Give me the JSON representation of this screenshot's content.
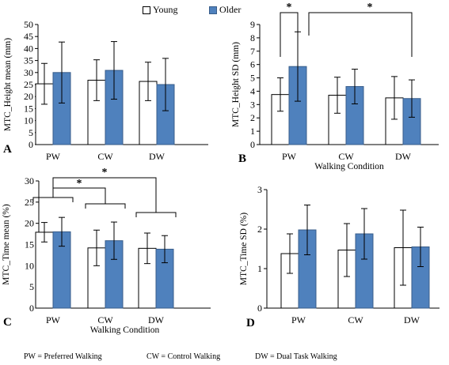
{
  "legend": {
    "young": "Young",
    "older": "Older"
  },
  "colors": {
    "young": "#ffffff",
    "older": "#4f81bd",
    "outline": "#385d8a"
  },
  "footer": {
    "pw": "PW = Preferred Walking",
    "cw": "CW = Control Walking",
    "dw": "DW = Dual Task Walking"
  },
  "chart_data": [
    {
      "type": "bar",
      "panel": "A",
      "categories": [
        "PW",
        "CW",
        "DW"
      ],
      "series": [
        {
          "name": "Young",
          "values": [
            25.3,
            26.8,
            26.3
          ],
          "error": [
            8.5,
            8.5,
            8.0
          ]
        },
        {
          "name": "Older",
          "values": [
            30.0,
            30.9,
            25.0
          ],
          "error": [
            12.7,
            12.0,
            10.9
          ]
        }
      ],
      "ylabel": "MTC_Height mean (mm)",
      "xlabel": "",
      "ylim": [
        0,
        50
      ],
      "yticks": [
        "0",
        "5",
        "10",
        "15",
        "20",
        "25",
        "30",
        "35",
        "40",
        "45",
        "50"
      ],
      "significance": []
    },
    {
      "type": "bar",
      "panel": "B",
      "categories": [
        "PW",
        "CW",
        "DW"
      ],
      "series": [
        {
          "name": "Young",
          "values": [
            3.75,
            3.7,
            3.5
          ],
          "error": [
            1.25,
            1.35,
            1.6
          ]
        },
        {
          "name": "Older",
          "values": [
            5.85,
            4.35,
            3.45
          ],
          "error": [
            2.6,
            1.3,
            1.4
          ]
        }
      ],
      "ylabel": "MTC_Height SD (mm)",
      "xlabel": "Walking Condition",
      "ylim": [
        0,
        9
      ],
      "yticks": [
        "0",
        "1",
        "2",
        "3",
        "4",
        "5",
        "6",
        "7",
        "8",
        "9"
      ],
      "significance": [
        "*",
        "*"
      ]
    },
    {
      "type": "bar",
      "panel": "C",
      "categories": [
        "PW",
        "CW",
        "DW"
      ],
      "series": [
        {
          "name": "Young",
          "values": [
            17.9,
            14.2,
            14.1
          ],
          "error": [
            2.3,
            4.2,
            3.6
          ]
        },
        {
          "name": "Older",
          "values": [
            18.0,
            15.9,
            13.9
          ],
          "error": [
            3.4,
            4.4,
            3.2
          ]
        }
      ],
      "ylabel": "MTC_Time mean (%)",
      "xlabel": "Walking Condition",
      "ylim": [
        0,
        30
      ],
      "yticks": [
        "0",
        "5",
        "10",
        "15",
        "20",
        "25",
        "30"
      ],
      "significance": [
        "*",
        "*"
      ]
    },
    {
      "type": "bar",
      "panel": "D",
      "categories": [
        "PW",
        "CW",
        "DW"
      ],
      "series": [
        {
          "name": "Young",
          "values": [
            1.38,
            1.47,
            1.53
          ],
          "error": [
            0.5,
            0.67,
            0.95
          ]
        },
        {
          "name": "Older",
          "values": [
            1.98,
            1.88,
            1.55
          ],
          "error": [
            0.63,
            0.64,
            0.5
          ]
        }
      ],
      "ylabel": "MTC_Time SD (%)",
      "xlabel": "",
      "ylim": [
        0,
        3
      ],
      "yticks": [
        "0",
        "1",
        "2",
        "3"
      ],
      "significance": []
    }
  ]
}
